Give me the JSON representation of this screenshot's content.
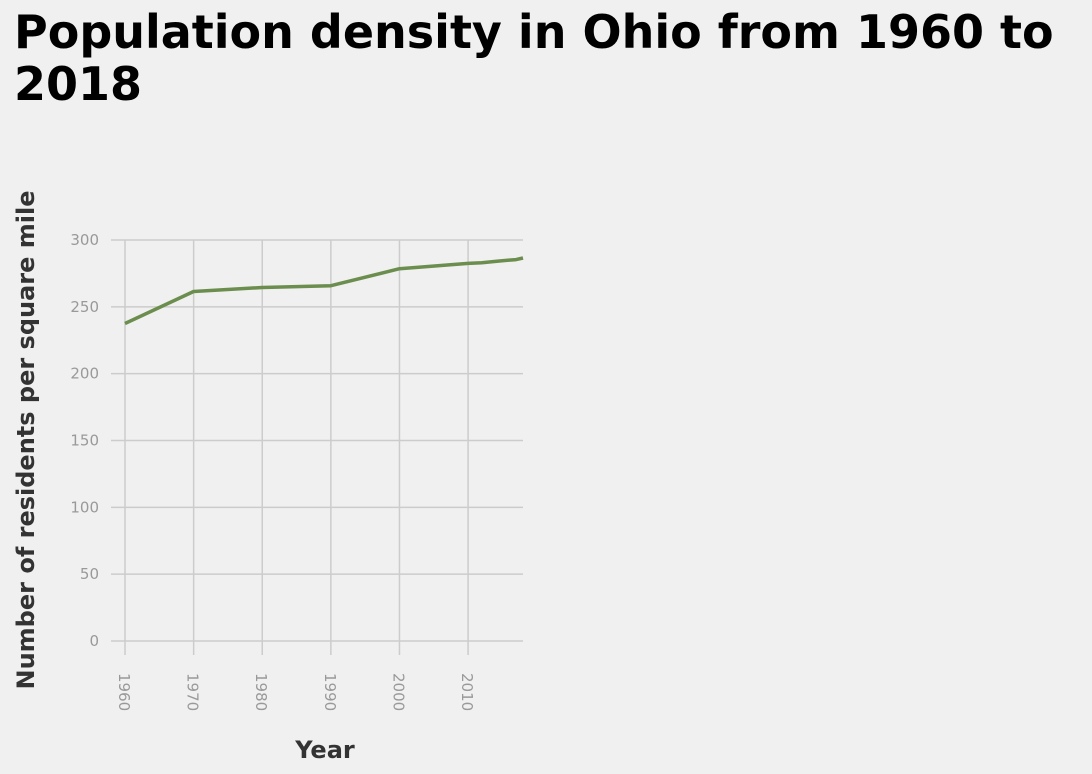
{
  "chart_data": {
    "type": "line",
    "title": "Population density in Ohio from 1960 to 2018",
    "xlabel": "Year",
    "ylabel": "Number of residents per square mile",
    "xlim": [
      1960,
      2018
    ],
    "ylim": [
      0,
      300
    ],
    "x_ticks": [
      1960,
      1970,
      1980,
      1990,
      2000,
      2010
    ],
    "y_ticks": [
      0,
      50,
      100,
      150,
      200,
      250,
      300
    ],
    "grid": true,
    "legend": "none",
    "line_color": "#6b8e4e",
    "series": [
      {
        "x": [
          1960,
          1970,
          1980,
          1990,
          2000,
          2010,
          2012,
          2014,
          2016,
          2017,
          2018
        ],
        "values": [
          237.5,
          261.5,
          264.5,
          265.8,
          278.5,
          282.5,
          283.0,
          284.0,
          285.0,
          285.3,
          286.5
        ]
      }
    ]
  }
}
